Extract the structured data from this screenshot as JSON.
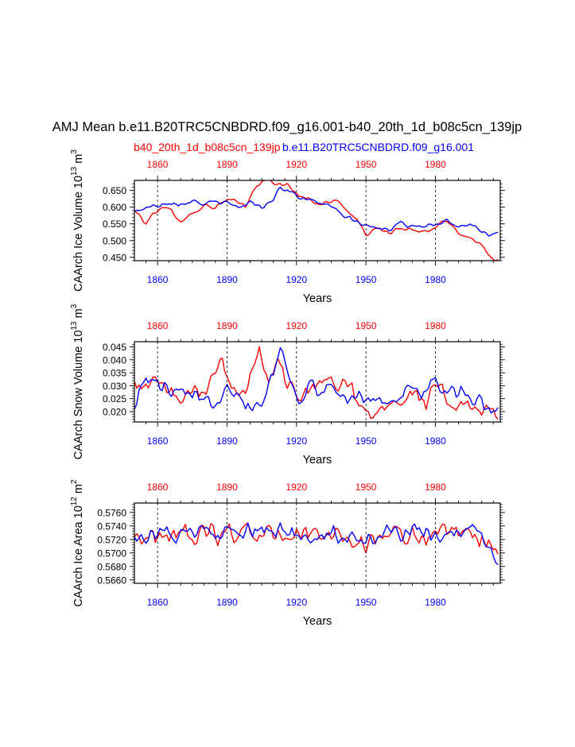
{
  "title": "AMJ Mean b.e11.B20TRC5CNBDRD.f09_g16.001-b40_20th_1d_b08c5cn_139jp",
  "legend": {
    "red_label": "b40_20th_1d_b08c5cn_139jp",
    "blue_label": "b.e11.B20TRC5CNBDRD.f09_g16.001"
  },
  "colors": {
    "red": "#ff0000",
    "blue": "#0000ff",
    "axis": "#000000",
    "grid": "#000000"
  },
  "chart_data": [
    {
      "type": "line",
      "ylabel": "CAArch Ice Volume 10^13 m^3",
      "ylabel_text": "CAArch Ice Volume 10",
      "ylabel_exp": "13",
      "ylabel_unit": "m",
      "ylabel_unit_exp": "3",
      "xlabel": "Years",
      "xlim": [
        1850,
        2008
      ],
      "ylim": [
        0.44,
        0.68
      ],
      "yticks": [
        0.45,
        0.5,
        0.55,
        0.6,
        0.65
      ],
      "ytick_labels": [
        "0.450",
        "0.500",
        "0.550",
        "0.600",
        "0.650"
      ],
      "xticks": [
        1860,
        1890,
        1920,
        1950,
        1980
      ],
      "xtick_labels": [
        "1860",
        "1890",
        "1920",
        "1950",
        "1980"
      ],
      "series": [
        {
          "name": "b40_20th_1d_b08c5cn_139jp",
          "color": "red",
          "anchors": [
            [
              1850,
              0.59
            ],
            [
              1853,
              0.57
            ],
            [
              1855,
              0.545
            ],
            [
              1858,
              0.585
            ],
            [
              1862,
              0.595
            ],
            [
              1866,
              0.59
            ],
            [
              1870,
              0.56
            ],
            [
              1875,
              0.58
            ],
            [
              1880,
              0.605
            ],
            [
              1885,
              0.6
            ],
            [
              1890,
              0.62
            ],
            [
              1895,
              0.615
            ],
            [
              1898,
              0.6
            ],
            [
              1903,
              0.67
            ],
            [
              1907,
              0.68
            ],
            [
              1912,
              0.67
            ],
            [
              1916,
              0.665
            ],
            [
              1920,
              0.64
            ],
            [
              1925,
              0.625
            ],
            [
              1930,
              0.61
            ],
            [
              1935,
              0.615
            ],
            [
              1938,
              0.62
            ],
            [
              1942,
              0.59
            ],
            [
              1946,
              0.56
            ],
            [
              1950,
              0.52
            ],
            [
              1955,
              0.535
            ],
            [
              1960,
              0.525
            ],
            [
              1965,
              0.535
            ],
            [
              1970,
              0.53
            ],
            [
              1975,
              0.525
            ],
            [
              1980,
              0.54
            ],
            [
              1985,
              0.56
            ],
            [
              1990,
              0.525
            ],
            [
              1995,
              0.51
            ],
            [
              2000,
              0.485
            ],
            [
              2004,
              0.45
            ],
            [
              2007,
              0.445
            ]
          ],
          "amp": 0.008
        },
        {
          "name": "b.e11.B20TRC5CNBDRD.f09_g16.001",
          "color": "blue",
          "anchors": [
            [
              1850,
              0.585
            ],
            [
              1855,
              0.6
            ],
            [
              1860,
              0.605
            ],
            [
              1865,
              0.615
            ],
            [
              1870,
              0.61
            ],
            [
              1875,
              0.62
            ],
            [
              1880,
              0.61
            ],
            [
              1885,
              0.615
            ],
            [
              1890,
              0.61
            ],
            [
              1895,
              0.6
            ],
            [
              1900,
              0.615
            ],
            [
              1905,
              0.6
            ],
            [
              1910,
              0.625
            ],
            [
              1913,
              0.66
            ],
            [
              1918,
              0.645
            ],
            [
              1922,
              0.625
            ],
            [
              1926,
              0.62
            ],
            [
              1930,
              0.615
            ],
            [
              1935,
              0.6
            ],
            [
              1940,
              0.575
            ],
            [
              1945,
              0.56
            ],
            [
              1950,
              0.545
            ],
            [
              1955,
              0.535
            ],
            [
              1960,
              0.535
            ],
            [
              1965,
              0.55
            ],
            [
              1970,
              0.545
            ],
            [
              1975,
              0.545
            ],
            [
              1980,
              0.55
            ],
            [
              1985,
              0.56
            ],
            [
              1990,
              0.545
            ],
            [
              1995,
              0.55
            ],
            [
              2000,
              0.53
            ],
            [
              2004,
              0.515
            ],
            [
              2007,
              0.52
            ]
          ],
          "amp": 0.008
        }
      ]
    },
    {
      "type": "line",
      "ylabel": "CAArch Snow Volume 10^13 m^3",
      "ylabel_text": "CAArch Snow Volume 10",
      "ylabel_exp": "13",
      "ylabel_unit": "m",
      "ylabel_unit_exp": "3",
      "xlabel": "Years",
      "xlim": [
        1850,
        2008
      ],
      "ylim": [
        0.016,
        0.047
      ],
      "yticks": [
        0.02,
        0.025,
        0.03,
        0.035,
        0.04,
        0.045
      ],
      "ytick_labels": [
        "0.020",
        "0.025",
        "0.030",
        "0.035",
        "0.040",
        "0.045"
      ],
      "xticks": [
        1860,
        1890,
        1920,
        1950,
        1980
      ],
      "xtick_labels": [
        "1860",
        "1890",
        "1920",
        "1950",
        "1980"
      ],
      "series": [
        {
          "name": "b40_20th_1d_b08c5cn_139jp",
          "color": "red",
          "anchors": [
            [
              1850,
              0.034
            ],
            [
              1855,
              0.028
            ],
            [
              1860,
              0.033
            ],
            [
              1865,
              0.027
            ],
            [
              1870,
              0.026
            ],
            [
              1875,
              0.03
            ],
            [
              1880,
              0.028
            ],
            [
              1885,
              0.036
            ],
            [
              1888,
              0.042
            ],
            [
              1892,
              0.03
            ],
            [
              1897,
              0.026
            ],
            [
              1900,
              0.032
            ],
            [
              1904,
              0.043
            ],
            [
              1908,
              0.032
            ],
            [
              1912,
              0.04
            ],
            [
              1916,
              0.03
            ],
            [
              1920,
              0.027
            ],
            [
              1925,
              0.029
            ],
            [
              1930,
              0.033
            ],
            [
              1935,
              0.03
            ],
            [
              1940,
              0.032
            ],
            [
              1944,
              0.028
            ],
            [
              1948,
              0.022
            ],
            [
              1952,
              0.019
            ],
            [
              1957,
              0.023
            ],
            [
              1962,
              0.025
            ],
            [
              1967,
              0.026
            ],
            [
              1972,
              0.027
            ],
            [
              1976,
              0.022
            ],
            [
              1980,
              0.03
            ],
            [
              1985,
              0.025
            ],
            [
              1990,
              0.023
            ],
            [
              1995,
              0.023
            ],
            [
              2000,
              0.02
            ],
            [
              2004,
              0.019
            ],
            [
              2007,
              0.018
            ]
          ],
          "amp": 0.004
        },
        {
          "name": "b.e11.B20TRC5CNBDRD.f09_g16.001",
          "color": "blue",
          "anchors": [
            [
              1850,
              0.023
            ],
            [
              1855,
              0.033
            ],
            [
              1860,
              0.03
            ],
            [
              1865,
              0.028
            ],
            [
              1870,
              0.026
            ],
            [
              1875,
              0.025
            ],
            [
              1880,
              0.027
            ],
            [
              1885,
              0.024
            ],
            [
              1890,
              0.031
            ],
            [
              1895,
              0.027
            ],
            [
              1900,
              0.022
            ],
            [
              1905,
              0.024
            ],
            [
              1910,
              0.036
            ],
            [
              1913,
              0.045
            ],
            [
              1917,
              0.033
            ],
            [
              1921,
              0.026
            ],
            [
              1925,
              0.029
            ],
            [
              1930,
              0.028
            ],
            [
              1935,
              0.03
            ],
            [
              1940,
              0.025
            ],
            [
              1945,
              0.028
            ],
            [
              1950,
              0.025
            ],
            [
              1955,
              0.023
            ],
            [
              1960,
              0.026
            ],
            [
              1965,
              0.025
            ],
            [
              1970,
              0.03
            ],
            [
              1975,
              0.027
            ],
            [
              1980,
              0.033
            ],
            [
              1985,
              0.026
            ],
            [
              1990,
              0.027
            ],
            [
              1995,
              0.026
            ],
            [
              2000,
              0.022
            ],
            [
              2004,
              0.021
            ],
            [
              2007,
              0.023
            ]
          ],
          "amp": 0.004
        }
      ]
    },
    {
      "type": "line",
      "ylabel": "CAArch Ice Area 10^12 m^2",
      "ylabel_text": "CAArch Ice Area 10",
      "ylabel_exp": "12",
      "ylabel_unit": "m",
      "ylabel_unit_exp": "2",
      "xlabel": "Years",
      "xlim": [
        1850,
        2008
      ],
      "ylim": [
        0.5655,
        0.5774
      ],
      "yticks": [
        0.566,
        0.568,
        0.57,
        0.572,
        0.574,
        0.576
      ],
      "ytick_labels": [
        "0.5660",
        "0.5680",
        "0.5700",
        "0.5720",
        "0.5740",
        "0.5760"
      ],
      "xticks": [
        1860,
        1890,
        1920,
        1950,
        1980
      ],
      "xtick_labels": [
        "1860",
        "1890",
        "1920",
        "1950",
        "1980"
      ],
      "series": [
        {
          "name": "b40_20th_1d_b08c5cn_139jp",
          "color": "red",
          "anchors": [
            [
              1850,
              0.5725
            ],
            [
              1860,
              0.5725
            ],
            [
              1870,
              0.573
            ],
            [
              1880,
              0.5725
            ],
            [
              1890,
              0.573
            ],
            [
              1900,
              0.573
            ],
            [
              1910,
              0.5725
            ],
            [
              1920,
              0.573
            ],
            [
              1930,
              0.5725
            ],
            [
              1940,
              0.5725
            ],
            [
              1950,
              0.571
            ],
            [
              1955,
              0.5725
            ],
            [
              1960,
              0.573
            ],
            [
              1970,
              0.5725
            ],
            [
              1980,
              0.5725
            ],
            [
              1990,
              0.5725
            ],
            [
              2000,
              0.572
            ],
            [
              2007,
              0.5705
            ]
          ],
          "amp": 0.0018
        },
        {
          "name": "b.e11.B20TRC5CNBDRD.f09_g16.001",
          "color": "blue",
          "anchors": [
            [
              1850,
              0.5725
            ],
            [
              1860,
              0.573
            ],
            [
              1870,
              0.5725
            ],
            [
              1880,
              0.573
            ],
            [
              1890,
              0.5725
            ],
            [
              1900,
              0.573
            ],
            [
              1910,
              0.5735
            ],
            [
              1920,
              0.5725
            ],
            [
              1930,
              0.573
            ],
            [
              1940,
              0.5725
            ],
            [
              1950,
              0.5725
            ],
            [
              1960,
              0.573
            ],
            [
              1970,
              0.573
            ],
            [
              1980,
              0.5725
            ],
            [
              1990,
              0.573
            ],
            [
              2000,
              0.5725
            ],
            [
              2007,
              0.569
            ]
          ],
          "amp": 0.0016
        }
      ]
    }
  ]
}
